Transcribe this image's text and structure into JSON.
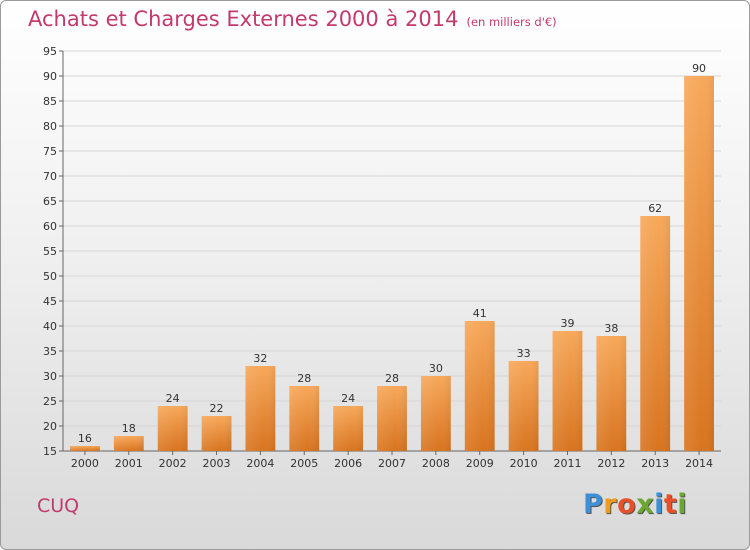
{
  "title": "Achats et Charges Externes 2000 à 2014",
  "subtitle": "(en milliers d'€)",
  "commune": "CUQ",
  "logo": {
    "letters": [
      "P",
      "r",
      "o",
      "x",
      "i",
      "t",
      "i"
    ],
    "colors": [
      "#3d8fd6",
      "#f29a1c",
      "#e8502a",
      "#6aa832",
      "#3d8fd6",
      "#e8502a",
      "#6aa832"
    ]
  },
  "colors": {
    "bar_light": "#f7a85a",
    "bar_dark": "#d8741f",
    "title": "#c23a6e"
  },
  "chart_data": {
    "type": "bar",
    "title": "Achats et Charges Externes 2000 à 2014",
    "subtitle": "(en milliers d'€)",
    "categories": [
      "2000",
      "2001",
      "2002",
      "2003",
      "2004",
      "2005",
      "2006",
      "2007",
      "2008",
      "2009",
      "2010",
      "2011",
      "2012",
      "2013",
      "2014"
    ],
    "values": [
      16,
      18,
      24,
      22,
      32,
      28,
      24,
      28,
      30,
      41,
      33,
      39,
      38,
      62,
      90
    ],
    "ylim": [
      15,
      95
    ],
    "yticks": [
      15,
      20,
      25,
      30,
      35,
      40,
      45,
      50,
      55,
      60,
      65,
      70,
      75,
      80,
      85,
      90,
      95
    ],
    "grid": true,
    "xlabel": "",
    "ylabel": ""
  }
}
